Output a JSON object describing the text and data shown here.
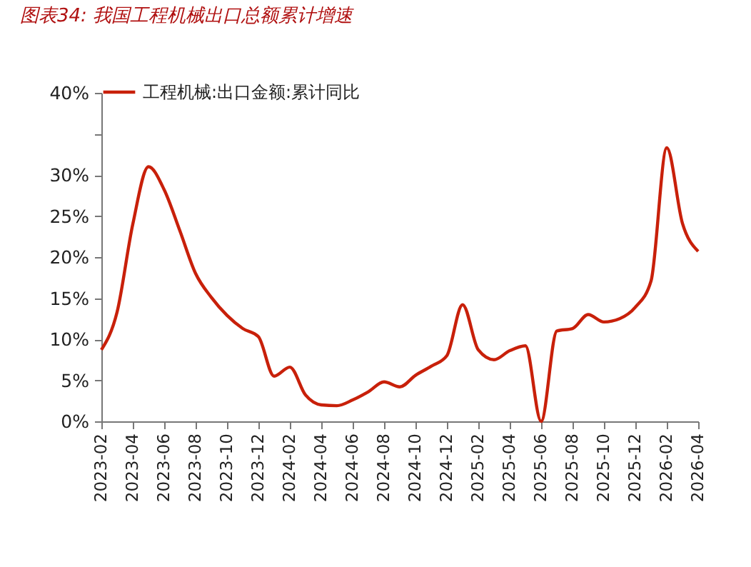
{
  "chart_data": {
    "type": "line",
    "title": "图表34: 我国工程机械出口总额累计增速",
    "categories": [
      "2023-02",
      null,
      "2023-04",
      null,
      "2023-06",
      null,
      "2023-08",
      null,
      "2023-10",
      null,
      "2023-12",
      null,
      "2024-02",
      null,
      "2024-04",
      null,
      "2024-06",
      null,
      "2024-08",
      null,
      "2024-10",
      null,
      "2024-12",
      null,
      "2025-02",
      null,
      "2025-04",
      null,
      "2025-06",
      null,
      "2025-08",
      null,
      "2025-10",
      null,
      "2025-12",
      null,
      "2026-02",
      null,
      "2026-04"
    ],
    "series": [
      {
        "name": "工程机械:出口金额:累计同比",
        "color": "#c8200a",
        "values": [
          8.7,
          13.3,
          24.0,
          31.0,
          28.2,
          23.2,
          18.0,
          15.1,
          12.9,
          11.3,
          10.3,
          5.5,
          6.6,
          3.2,
          2.0,
          1.9,
          2.6,
          3.6,
          4.8,
          4.2,
          5.6,
          6.7,
          8.0,
          14.2,
          8.7,
          7.5,
          8.6,
          9.2,
          0.0,
          11.0,
          11.3,
          13.0,
          12.1,
          12.5,
          13.9,
          17.1,
          33.3,
          24.1,
          20.7
        ]
      }
    ],
    "ylim": [
      0,
      40
    ],
    "yticks": [
      {
        "value": 0,
        "label": "0%"
      },
      {
        "value": 5,
        "label": "5%"
      },
      {
        "value": 10,
        "label": "10%"
      },
      {
        "value": 15,
        "label": "15%"
      },
      {
        "value": 20,
        "label": "20%"
      },
      {
        "value": 25,
        "label": "25%"
      },
      {
        "value": 30,
        "label": "30%"
      },
      {
        "value": 35,
        "label": null
      },
      {
        "value": 40,
        "label": "40%"
      }
    ],
    "grid": false,
    "legend": "top",
    "marker": "none",
    "line_style": "solid"
  }
}
